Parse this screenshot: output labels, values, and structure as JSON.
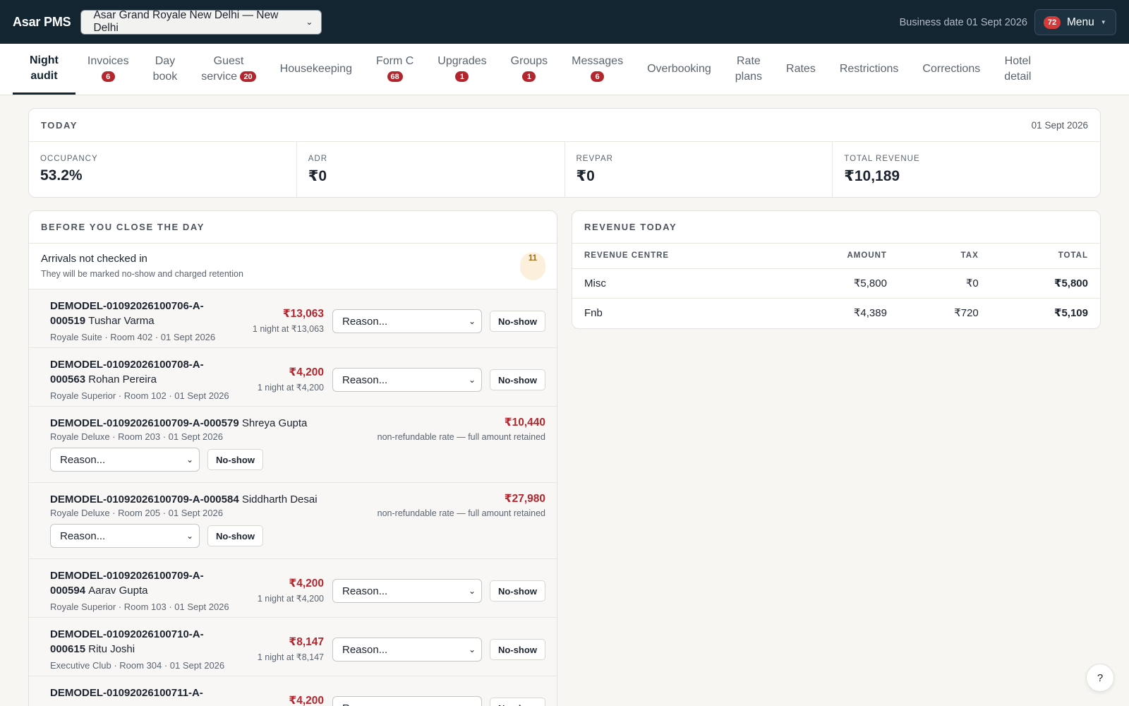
{
  "topbar": {
    "brand": "Asar PMS",
    "hotel_selected": "Asar Grand Royale New Delhi — New Delhi",
    "business_date": "Business date 01 Sept 2026",
    "menu_badge": "72",
    "menu_label": "Menu"
  },
  "nav": {
    "tabs": [
      {
        "line1": "Night",
        "line2": "audit",
        "badge": ""
      },
      {
        "line1": "Invoices",
        "line2": "",
        "badge": "6"
      },
      {
        "line1": "Day",
        "line2": "book",
        "badge": ""
      },
      {
        "line1": "Guest",
        "line2": "service",
        "badge": "20"
      },
      {
        "line1": "Housekeeping",
        "line2": "",
        "badge": ""
      },
      {
        "line1": "Form C",
        "line2": "",
        "badge": "68"
      },
      {
        "line1": "Upgrades",
        "line2": "",
        "badge": "1"
      },
      {
        "line1": "Groups",
        "line2": "",
        "badge": "1"
      },
      {
        "line1": "Messages",
        "line2": "",
        "badge": "6"
      },
      {
        "line1": "Overbooking",
        "line2": "",
        "badge": ""
      },
      {
        "line1": "Rate",
        "line2": "plans",
        "badge": ""
      },
      {
        "line1": "Rates",
        "line2": "",
        "badge": ""
      },
      {
        "line1": "Restrictions",
        "line2": "",
        "badge": ""
      },
      {
        "line1": "Corrections",
        "line2": "",
        "badge": ""
      },
      {
        "line1": "Hotel",
        "line2": "detail",
        "badge": ""
      }
    ]
  },
  "today": {
    "title": "TODAY",
    "date": "01 Sept 2026",
    "kpis": [
      {
        "label": "OCCUPANCY",
        "value": "53.2%"
      },
      {
        "label": "ADR",
        "value": "₹0"
      },
      {
        "label": "REVPAR",
        "value": "₹0"
      },
      {
        "label": "TOTAL REVENUE",
        "value": "₹10,189"
      }
    ]
  },
  "before_close": {
    "title": "BEFORE YOU CLOSE THE DAY",
    "arrivals_title": "Arrivals not checked in",
    "arrivals_sub": "They will be marked no-show and charged retention",
    "arrivals_count": "11",
    "reason_placeholder": "Reason...",
    "noshow_label": "No-show",
    "rows": [
      {
        "id": "DEMODEL-01092026100706-A-000519",
        "guest": "Tushar Varma",
        "meta": "Royale Suite · Room 402 · 01 Sept 2026",
        "amount": "₹13,063",
        "note": "1 night at ₹13,063"
      },
      {
        "id": "DEMODEL-01092026100708-A-000563",
        "guest": "Rohan Pereira",
        "meta": "Royale Superior · Room 102 · 01 Sept 2026",
        "amount": "₹4,200",
        "note": "1 night at ₹4,200"
      },
      {
        "id": "DEMODEL-01092026100709-A-000579",
        "guest": "Shreya Gupta",
        "meta": "Royale Deluxe · Room 203 · 01 Sept 2026",
        "amount": "₹10,440",
        "note": "non-refundable rate — full amount retained"
      },
      {
        "id": "DEMODEL-01092026100709-A-000584",
        "guest": "Siddharth Desai",
        "meta": "Royale Deluxe · Room 205 · 01 Sept 2026",
        "amount": "₹27,980",
        "note": "non-refundable rate — full amount retained"
      },
      {
        "id": "DEMODEL-01092026100709-A-000594",
        "guest": "Aarav Gupta",
        "meta": "Royale Superior · Room 103 · 01 Sept 2026",
        "amount": "₹4,200",
        "note": "1 night at ₹4,200"
      },
      {
        "id": "DEMODEL-01092026100710-A-000615",
        "guest": "Ritu Joshi",
        "meta": "Executive Club · Room 304 · 01 Sept 2026",
        "amount": "₹8,147",
        "note": "1 night at ₹8,147"
      },
      {
        "id": "DEMODEL-01092026100711-A-",
        "guest": "",
        "meta": "",
        "amount": "₹4,200",
        "note": ""
      }
    ]
  },
  "revenue_today": {
    "title": "REVENUE TODAY",
    "columns": [
      "REVENUE CENTRE",
      "AMOUNT",
      "TAX",
      "TOTAL"
    ],
    "rows": [
      {
        "centre": "Misc",
        "amount": "₹5,800",
        "tax": "₹0",
        "total": "₹5,800"
      },
      {
        "centre": "Fnb",
        "amount": "₹4,389",
        "tax": "₹720",
        "total": "₹5,109"
      }
    ]
  },
  "help_label": "?"
}
